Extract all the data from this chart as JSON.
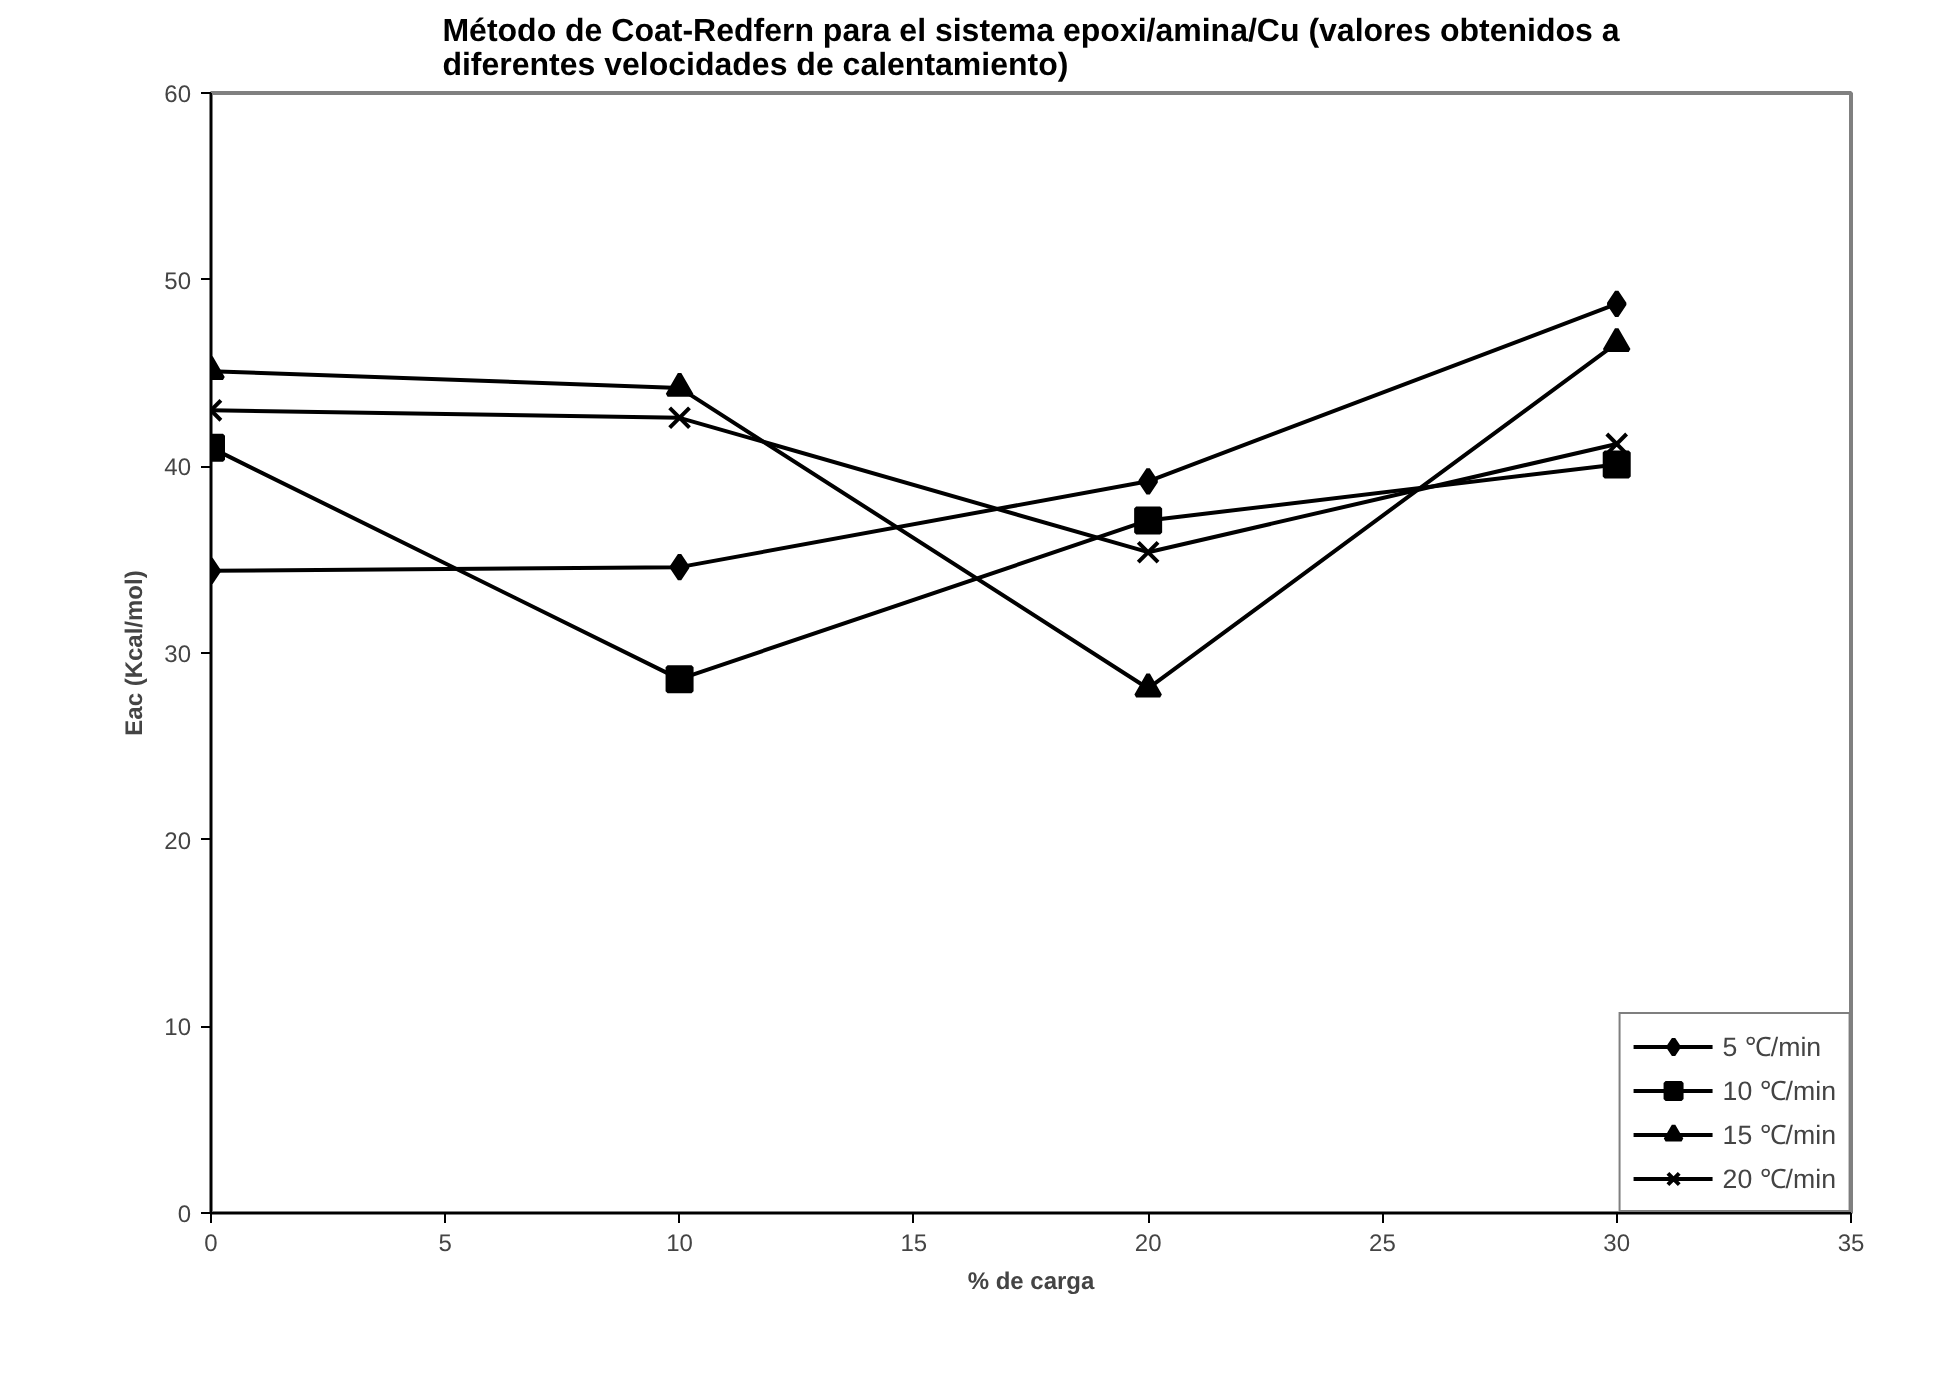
{
  "chart_data": {
    "type": "line",
    "title": "Método de Coat-Redfern para el sistema epoxi/amina/Cu (valores obtenidos a diferentes velocidades de calentamiento)",
    "xlabel": "% de carga",
    "ylabel": "Eac (Kcal/mol)",
    "x": [
      0,
      10,
      20,
      30
    ],
    "series": [
      {
        "name": "5 ℃/min",
        "color": "#000000",
        "marker": "diamond",
        "values": [
          34.4,
          34.6,
          39.2,
          48.7
        ]
      },
      {
        "name": "10 ℃/min",
        "color": "#000000",
        "marker": "square",
        "values": [
          41.0,
          28.6,
          37.1,
          40.1
        ]
      },
      {
        "name": "15 ℃/min",
        "color": "#000000",
        "marker": "triangle",
        "values": [
          45.1,
          44.2,
          28.1,
          46.6
        ]
      },
      {
        "name": "20 ℃/min",
        "color": "#000000",
        "marker": "cross",
        "values": [
          43.0,
          42.6,
          35.4,
          41.2
        ]
      }
    ],
    "xlim": [
      0,
      35
    ],
    "xticks": [
      0,
      5,
      10,
      15,
      20,
      25,
      30,
      35
    ],
    "ylim": [
      0,
      60
    ],
    "yticks": [
      0,
      10,
      20,
      30,
      40,
      50,
      60
    ],
    "grid": false,
    "legend": "bottom right",
    "line_style": "solid"
  }
}
